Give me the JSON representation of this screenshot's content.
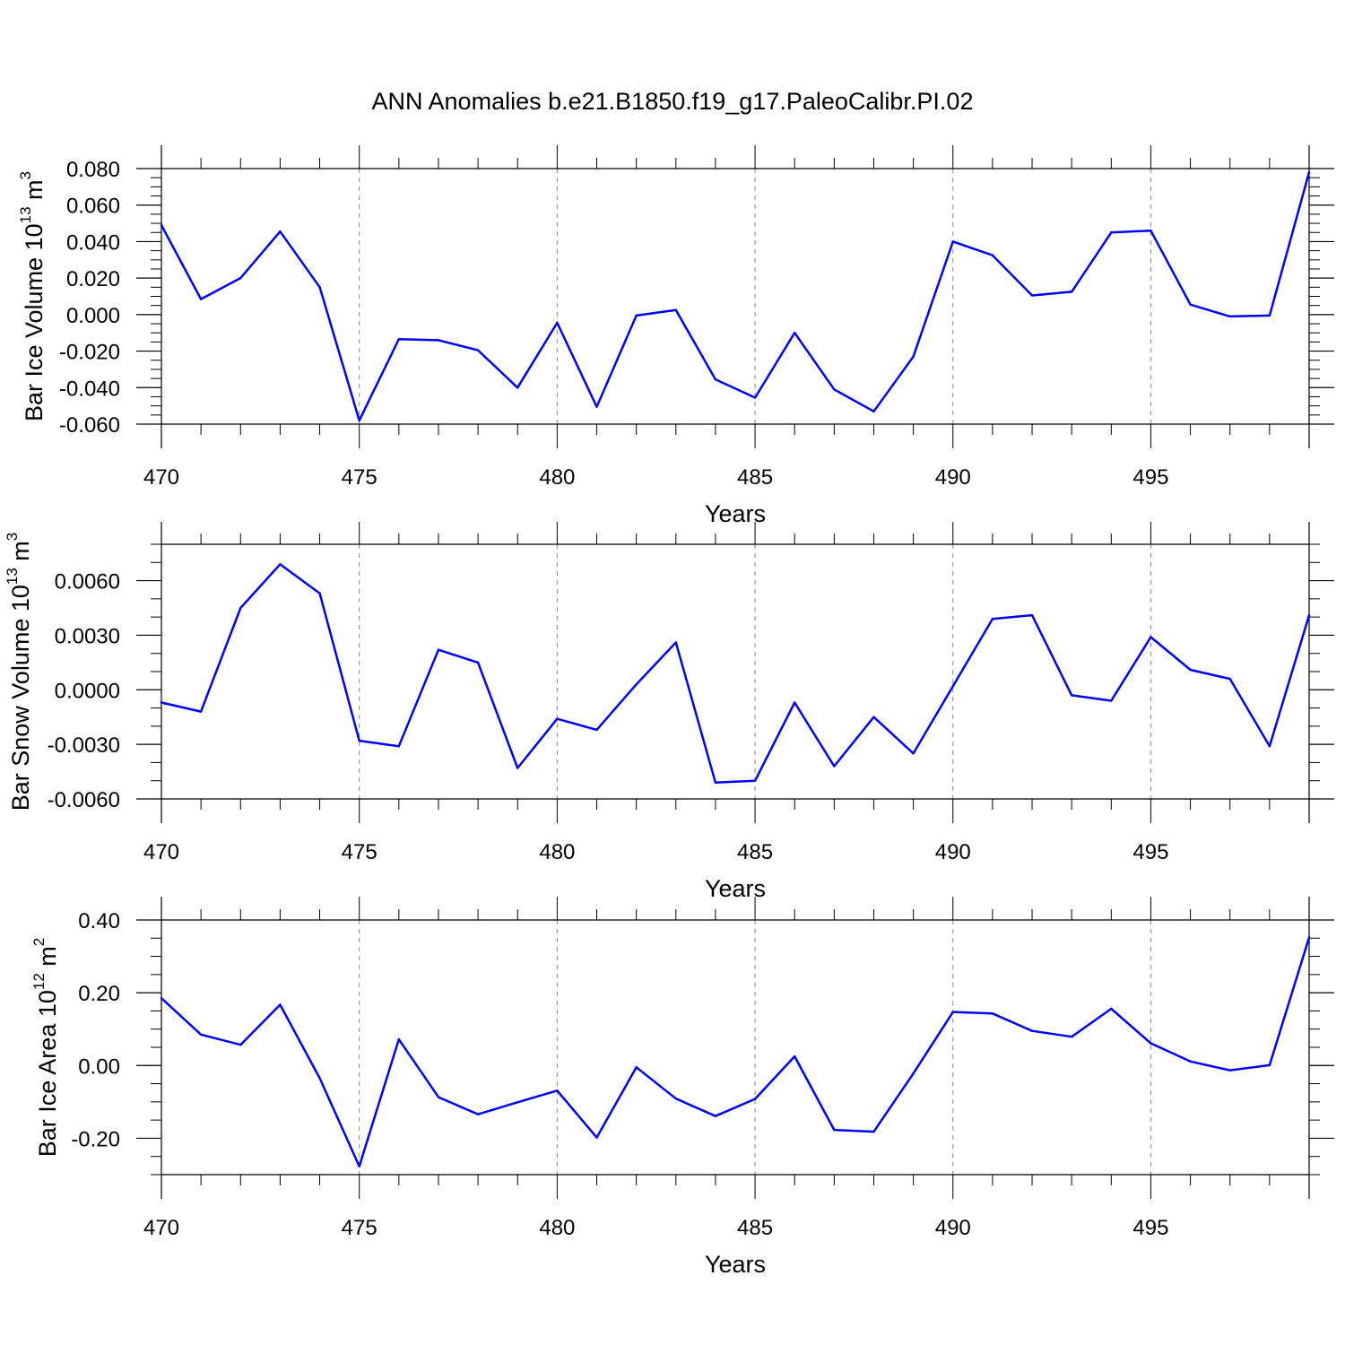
{
  "title": "ANN Anomalies b.e21.B1850.f19_g17.PaleoCalibr.PI.02",
  "colors": {
    "line": "#0000ff",
    "axis": "#000000",
    "grid": "#888888"
  },
  "chart_data": [
    {
      "type": "line",
      "xlabel": "Years",
      "ylabel": "Bar Ice Volume 10",
      "ylabel_sup": "13",
      "ylabel_unit": " m",
      "ylabel_unit_sup": "3",
      "xlim": [
        470,
        499
      ],
      "ylim": [
        -0.06,
        0.08
      ],
      "xticks": [
        470,
        475,
        480,
        485,
        490,
        495
      ],
      "xtick_labels": [
        "470",
        "475",
        "480",
        "485",
        "490",
        "495"
      ],
      "yticks": [
        -0.06,
        -0.04,
        -0.02,
        0.0,
        0.02,
        0.04,
        0.06,
        0.08
      ],
      "ytick_labels": [
        "-0.060",
        "-0.040",
        "-0.020",
        "0.000",
        "0.020",
        "0.040",
        "0.060",
        "0.080"
      ],
      "yminor_step": 0.005,
      "grid": "dashed vertical at major x ticks",
      "x": [
        470,
        471,
        472,
        473,
        474,
        475,
        476,
        477,
        478,
        479,
        480,
        481,
        482,
        483,
        484,
        485,
        486,
        487,
        488,
        489,
        490,
        491,
        492,
        493,
        494,
        495,
        496,
        497,
        498,
        499
      ],
      "values": [
        0.049,
        0.0085,
        0.02,
        0.0455,
        0.015,
        -0.058,
        -0.0135,
        -0.014,
        -0.0195,
        -0.04,
        -0.0045,
        -0.0505,
        -0.0005,
        0.0025,
        -0.0355,
        -0.0455,
        -0.01,
        -0.041,
        -0.053,
        -0.023,
        0.04,
        0.0325,
        0.0105,
        0.0125,
        0.045,
        0.046,
        0.0055,
        -0.001,
        -0.0005,
        0.078
      ]
    },
    {
      "type": "line",
      "xlabel": "Years",
      "ylabel": "Bar Snow Volume 10",
      "ylabel_sup": "13",
      "ylabel_unit": " m",
      "ylabel_unit_sup": "3",
      "xlim": [
        470,
        499
      ],
      "ylim": [
        -0.006,
        0.008
      ],
      "xticks": [
        470,
        475,
        480,
        485,
        490,
        495
      ],
      "xtick_labels": [
        "470",
        "475",
        "480",
        "485",
        "490",
        "495"
      ],
      "yticks": [
        -0.006,
        -0.003,
        0.0,
        0.003,
        0.006
      ],
      "ytick_labels": [
        "-0.0060",
        "-0.0030",
        "0.0000",
        "0.0030",
        "0.0060"
      ],
      "yminor_step": 0.001,
      "grid": "dashed vertical at major x ticks",
      "x": [
        470,
        471,
        472,
        473,
        474,
        475,
        476,
        477,
        478,
        479,
        480,
        481,
        482,
        483,
        484,
        485,
        486,
        487,
        488,
        489,
        490,
        491,
        492,
        493,
        494,
        495,
        496,
        497,
        498,
        499
      ],
      "values": [
        -0.0007,
        -0.0012,
        0.0045,
        0.0069,
        0.0053,
        -0.0028,
        -0.0031,
        0.0022,
        0.0015,
        -0.0043,
        -0.0016,
        -0.0022,
        0.0003,
        0.0026,
        -0.0051,
        -0.005,
        -0.0007,
        -0.0042,
        -0.0015,
        -0.0035,
        0.0002,
        0.0039,
        0.0041,
        -0.0003,
        -0.0006,
        0.0029,
        0.0011,
        0.0006,
        -0.0031,
        0.0041
      ]
    },
    {
      "type": "line",
      "xlabel": "Years",
      "ylabel": "Bar Ice Area 10",
      "ylabel_sup": "12",
      "ylabel_unit": " m",
      "ylabel_unit_sup": "2",
      "xlim": [
        470,
        499
      ],
      "ylim": [
        -0.3,
        0.4
      ],
      "xticks": [
        470,
        475,
        480,
        485,
        490,
        495
      ],
      "xtick_labels": [
        "470",
        "475",
        "480",
        "485",
        "490",
        "495"
      ],
      "yticks": [
        -0.2,
        0.0,
        0.2,
        0.4
      ],
      "ytick_labels": [
        "-0.20",
        "0.00",
        "0.20",
        "0.40"
      ],
      "yminor_step": 0.05,
      "grid": "dashed vertical at major x ticks",
      "x": [
        470,
        471,
        472,
        473,
        474,
        475,
        476,
        477,
        478,
        479,
        480,
        481,
        482,
        483,
        484,
        485,
        486,
        487,
        488,
        489,
        490,
        491,
        492,
        493,
        494,
        495,
        496,
        497,
        498,
        499
      ],
      "values": [
        0.185,
        0.085,
        0.057,
        0.167,
        -0.035,
        -0.277,
        0.072,
        -0.087,
        -0.134,
        -0.101,
        -0.069,
        -0.198,
        -0.005,
        -0.091,
        -0.139,
        -0.092,
        0.025,
        -0.177,
        -0.182,
        -0.022,
        0.147,
        0.143,
        0.095,
        0.079,
        0.156,
        0.061,
        0.011,
        -0.013,
        0.001,
        0.352
      ]
    }
  ]
}
